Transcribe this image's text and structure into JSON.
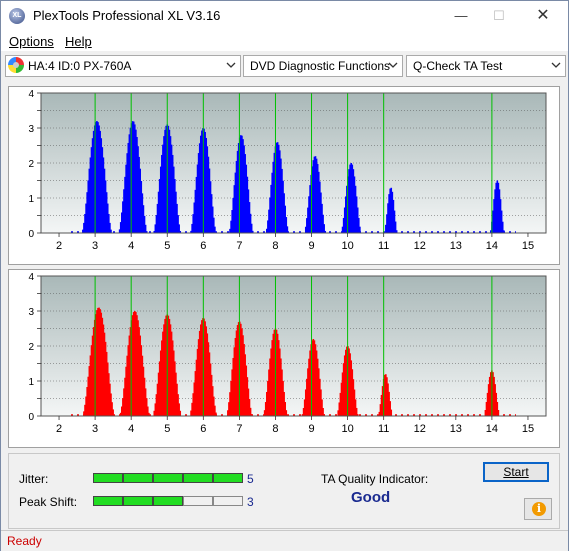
{
  "window": {
    "title": "PlexTools Professional XL V3.16",
    "icon_text": "XL"
  },
  "menu": [
    {
      "label": "Options"
    },
    {
      "label": "Help"
    }
  ],
  "toolbar": {
    "drive": "HA:4 ID:0  PX-760A",
    "function": "DVD Diagnostic Functions",
    "test": "Q-Check TA Test"
  },
  "charts": {
    "x_ticks": [
      "2",
      "3",
      "4",
      "5",
      "6",
      "7",
      "8",
      "9",
      "10",
      "11",
      "12",
      "13",
      "14",
      "15"
    ],
    "y_ticks": [
      "0",
      "0.5",
      "1",
      "1.5",
      "2",
      "2.5",
      "3",
      "3.5",
      "4"
    ],
    "x_range": [
      1.5,
      15.5
    ],
    "y_range": [
      0,
      4
    ],
    "green_line_positions": [
      3,
      4,
      5,
      6,
      7,
      8,
      9,
      10,
      11,
      14
    ],
    "top_color": "#0000ff",
    "bottom_color": "#ff0000",
    "grid_color": "#009000"
  },
  "chart_data": [
    {
      "type": "bar",
      "title": "",
      "ylim": [
        0,
        4
      ],
      "xlim": [
        1.5,
        15.5
      ],
      "peaks": [
        {
          "center": 3.05,
          "height": 3.2,
          "width": 0.42
        },
        {
          "center": 4.05,
          "height": 3.2,
          "width": 0.4
        },
        {
          "center": 5.0,
          "height": 3.1,
          "width": 0.38
        },
        {
          "center": 6.0,
          "height": 3.0,
          "width": 0.36
        },
        {
          "center": 7.05,
          "height": 2.8,
          "width": 0.34
        },
        {
          "center": 8.05,
          "height": 2.6,
          "width": 0.32
        },
        {
          "center": 9.1,
          "height": 2.2,
          "width": 0.3
        },
        {
          "center": 10.1,
          "height": 2.0,
          "width": 0.28
        },
        {
          "center": 11.2,
          "height": 1.3,
          "width": 0.18
        },
        {
          "center": 14.15,
          "height": 1.5,
          "width": 0.2
        }
      ]
    },
    {
      "type": "bar",
      "title": "",
      "ylim": [
        0,
        4
      ],
      "xlim": [
        1.5,
        15.5
      ],
      "peaks": [
        {
          "center": 3.1,
          "height": 3.1,
          "width": 0.45
        },
        {
          "center": 4.1,
          "height": 3.0,
          "width": 0.42
        },
        {
          "center": 5.0,
          "height": 2.9,
          "width": 0.4
        },
        {
          "center": 6.0,
          "height": 2.8,
          "width": 0.38
        },
        {
          "center": 7.0,
          "height": 2.7,
          "width": 0.36
        },
        {
          "center": 8.0,
          "height": 2.5,
          "width": 0.34
        },
        {
          "center": 9.05,
          "height": 2.2,
          "width": 0.32
        },
        {
          "center": 10.0,
          "height": 2.0,
          "width": 0.3
        },
        {
          "center": 11.05,
          "height": 1.2,
          "width": 0.2
        },
        {
          "center": 14.0,
          "height": 1.3,
          "width": 0.22
        }
      ]
    }
  ],
  "results": {
    "jitter_label": "Jitter:",
    "jitter_value": "5",
    "jitter_level": 5,
    "peak_shift_label": "Peak Shift:",
    "peak_shift_value": "3",
    "peak_shift_level": 3,
    "meter_max": 5,
    "ta_label": "TA Quality Indicator:",
    "ta_value": "Good",
    "start_label": "Start",
    "meter_on_color": "#22dd22"
  },
  "status": {
    "text": "Ready"
  }
}
